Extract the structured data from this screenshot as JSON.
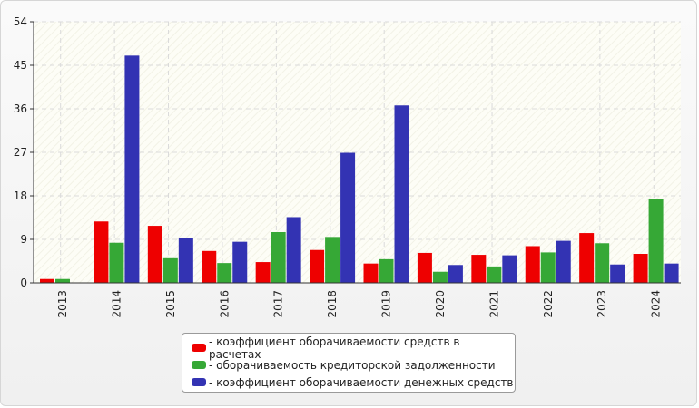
{
  "chart_data": {
    "type": "bar",
    "categories": [
      "2013",
      "2014",
      "2015",
      "2016",
      "2017",
      "2018",
      "2019",
      "2020",
      "2021",
      "2022",
      "2023",
      "2024"
    ],
    "series": [
      {
        "name": "- коэффициент оборачиваемости средств в расчетах",
        "color": "#ee0000",
        "values": [
          0.8,
          12.7,
          11.8,
          6.6,
          4.3,
          6.8,
          4.0,
          6.2,
          5.8,
          7.6,
          10.3,
          6.0
        ]
      },
      {
        "name": "- оборачиваемость кредиторской задолженности",
        "color": "#36a836",
        "values": [
          0.8,
          8.3,
          5.1,
          4.1,
          10.5,
          9.5,
          4.9,
          2.3,
          3.4,
          6.3,
          8.2,
          17.4
        ]
      },
      {
        "name": "- коэффициент оборачиваемости денежных средств",
        "color": "#3333b3",
        "values": [
          0,
          47.0,
          9.3,
          8.5,
          13.6,
          26.9,
          36.7,
          3.7,
          5.7,
          8.7,
          3.8,
          4.0
        ]
      }
    ],
    "yticks": [
      0,
      9,
      18,
      27,
      36,
      45,
      54
    ],
    "ylim": [
      0,
      54
    ],
    "grid": true,
    "legend_position": "bottom"
  }
}
